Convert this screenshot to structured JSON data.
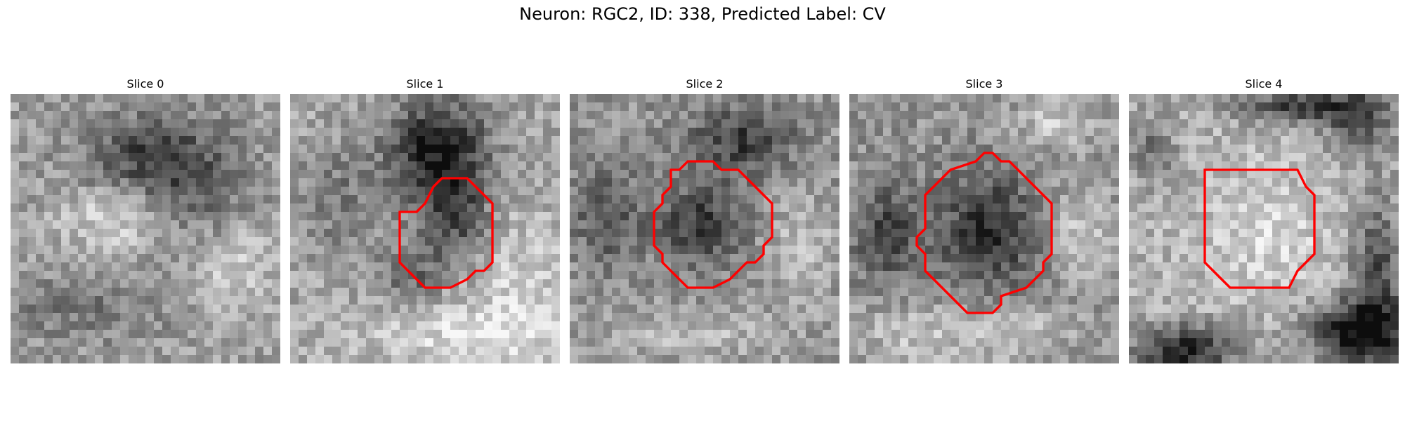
{
  "figure": {
    "title": "Neuron: RGC2, ID: 338, Predicted Label: CV"
  },
  "panels": [
    {
      "title": "Slice 0",
      "has_contour": false,
      "blobs": []
    },
    {
      "title": "Slice 1",
      "has_contour": true
    },
    {
      "title": "Slice 2",
      "has_contour": true
    },
    {
      "title": "Slice 3",
      "has_contour": true
    },
    {
      "title": "Slice 4",
      "has_contour": true
    }
  ],
  "colors": {
    "contour": "#ff0000",
    "background": "#ffffff"
  }
}
